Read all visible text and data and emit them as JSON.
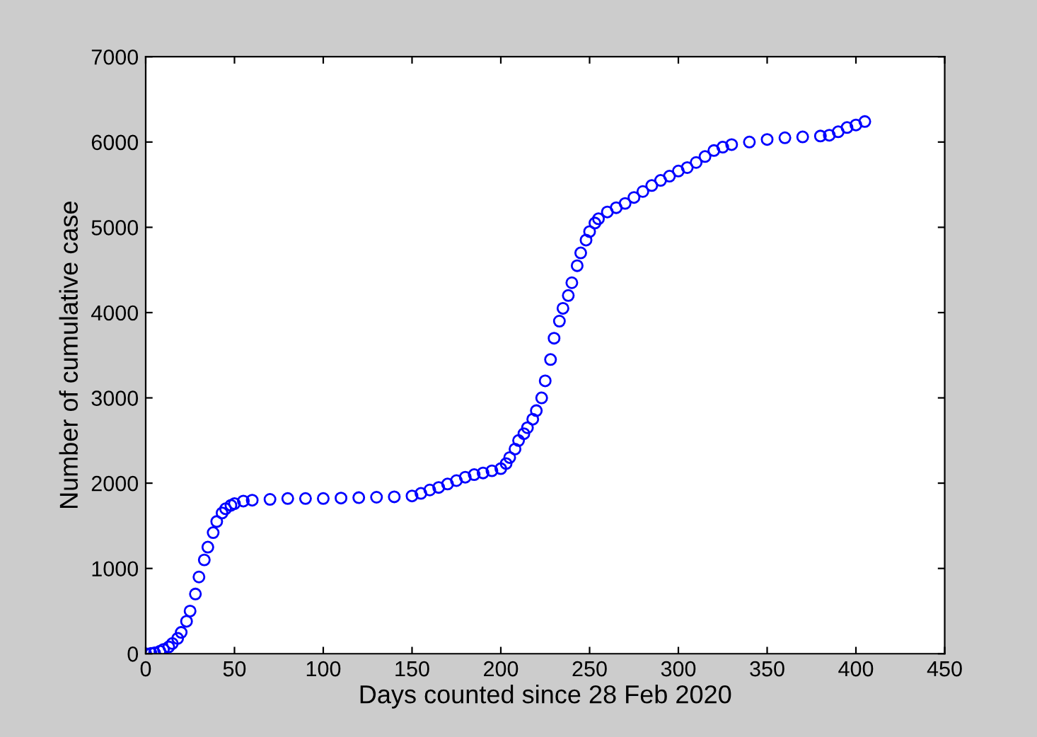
{
  "chart_data": {
    "type": "scatter",
    "xlabel": "Days counted since 28 Feb 2020",
    "ylabel": "Number of cumulative case",
    "x": [
      0,
      3,
      5,
      8,
      10,
      13,
      15,
      18,
      20,
      23,
      25,
      28,
      30,
      33,
      35,
      38,
      40,
      43,
      45,
      48,
      50,
      55,
      60,
      70,
      80,
      90,
      100,
      110,
      120,
      130,
      140,
      150,
      155,
      160,
      165,
      170,
      175,
      180,
      185,
      190,
      195,
      200,
      203,
      205,
      208,
      210,
      213,
      215,
      218,
      220,
      223,
      225,
      228,
      230,
      233,
      235,
      238,
      240,
      243,
      245,
      248,
      250,
      253,
      255,
      260,
      265,
      270,
      275,
      280,
      285,
      290,
      295,
      300,
      305,
      310,
      315,
      320,
      325,
      330,
      340,
      350,
      360,
      370,
      380,
      385,
      390,
      395,
      400,
      405
    ],
    "series": [
      {
        "color": "#0000ff",
        "values": [
          0,
          5,
          10,
          30,
          50,
          80,
          120,
          180,
          250,
          380,
          500,
          700,
          900,
          1100,
          1250,
          1420,
          1550,
          1650,
          1700,
          1740,
          1760,
          1790,
          1800,
          1810,
          1820,
          1820,
          1820,
          1825,
          1830,
          1835,
          1840,
          1850,
          1880,
          1920,
          1950,
          1990,
          2030,
          2070,
          2100,
          2120,
          2145,
          2170,
          2230,
          2300,
          2400,
          2500,
          2580,
          2650,
          2750,
          2850,
          3000,
          3200,
          3450,
          3700,
          3900,
          4050,
          4200,
          4350,
          4550,
          4700,
          4850,
          4950,
          5050,
          5100,
          5180,
          5230,
          5280,
          5350,
          5420,
          5490,
          5550,
          5600,
          5660,
          5700,
          5760,
          5830,
          5900,
          5940,
          5970,
          6000,
          6030,
          6050,
          6060,
          6070,
          6080,
          6120,
          6170,
          6200,
          6240
        ]
      }
    ],
    "xlim": [
      0,
      450
    ],
    "xticks": [
      0,
      50,
      100,
      150,
      200,
      250,
      300,
      350,
      400,
      450
    ],
    "ylim": [
      0,
      7000
    ],
    "yticks": [
      0,
      1000,
      2000,
      3000,
      4000,
      5000,
      6000,
      7000
    ],
    "marker": "circle",
    "grid": false,
    "legend": false
  }
}
